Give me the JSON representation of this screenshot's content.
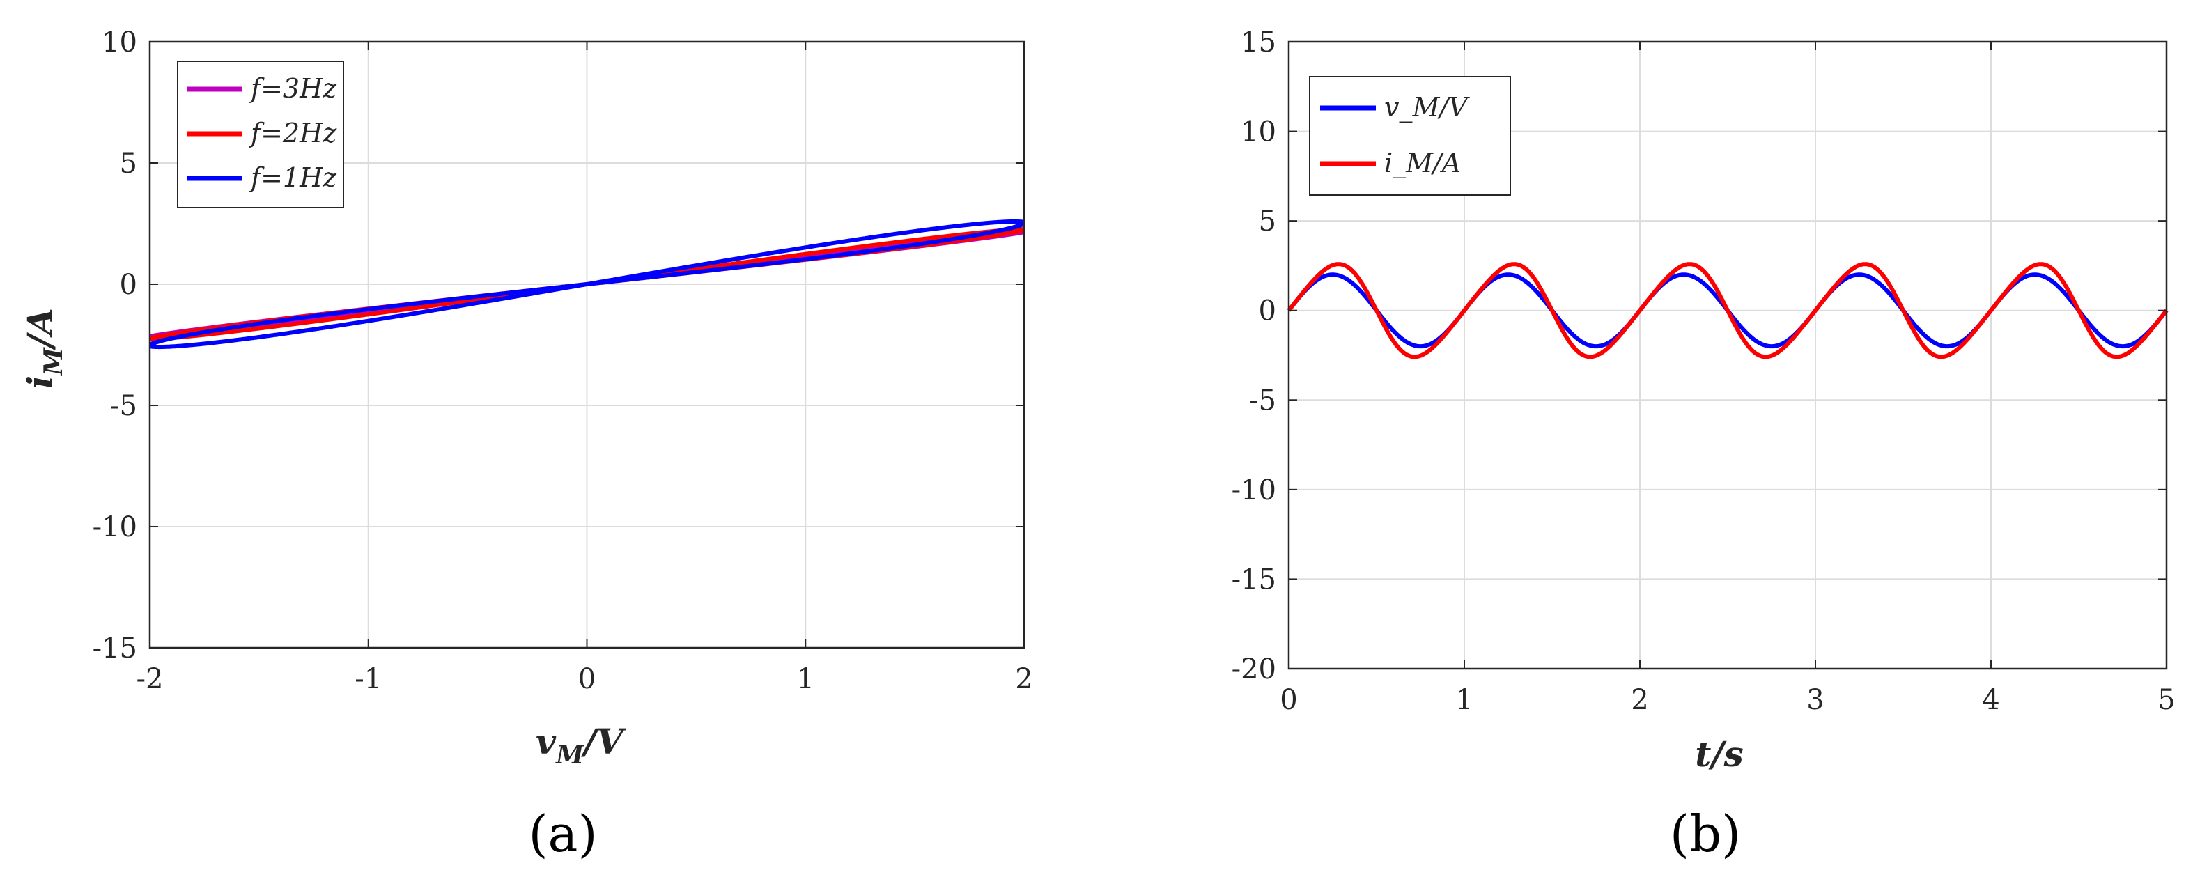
{
  "chart_data": [
    {
      "type": "line",
      "panel_label": "(a)",
      "xlabel": "v_M/V",
      "ylabel": "i_M/A",
      "xlim": [
        -2,
        2
      ],
      "ylim": [
        -15,
        10
      ],
      "xticks": [
        -2,
        -1,
        0,
        1,
        2
      ],
      "yticks": [
        -15,
        -10,
        -5,
        0,
        5,
        10
      ],
      "grid": true,
      "legend_position": "top-left",
      "model": {
        "v_amplitude": 2,
        "m0": 1,
        "m1": 0.75,
        "m2": 0.3,
        "cycles": 5
      },
      "series": [
        {
          "name": "f=3Hz",
          "freq": 3,
          "color": "#BF00BF"
        },
        {
          "name": "f=2Hz",
          "freq": 2,
          "color": "#FF0000"
        },
        {
          "name": "f=1Hz",
          "freq": 1,
          "color": "#0000FF"
        }
      ]
    },
    {
      "type": "line",
      "panel_label": "(b)",
      "xlabel": "t/s",
      "ylabel": "",
      "xlim": [
        0,
        5
      ],
      "ylim": [
        -20,
        15
      ],
      "xticks": [
        0,
        1,
        2,
        3,
        4,
        5
      ],
      "yticks": [
        -20,
        -15,
        -10,
        -5,
        0,
        5,
        10,
        15
      ],
      "grid": true,
      "legend_position": "top-left",
      "model": {
        "v_amplitude": 2,
        "freq": 1,
        "m0": 1,
        "m1": 0.75,
        "m2": 0.3
      },
      "series": [
        {
          "name": "v_M/V",
          "quantity": "v",
          "color": "#0000FF"
        },
        {
          "name": "i_M/A",
          "quantity": "i",
          "color": "#FF0000"
        }
      ]
    }
  ]
}
